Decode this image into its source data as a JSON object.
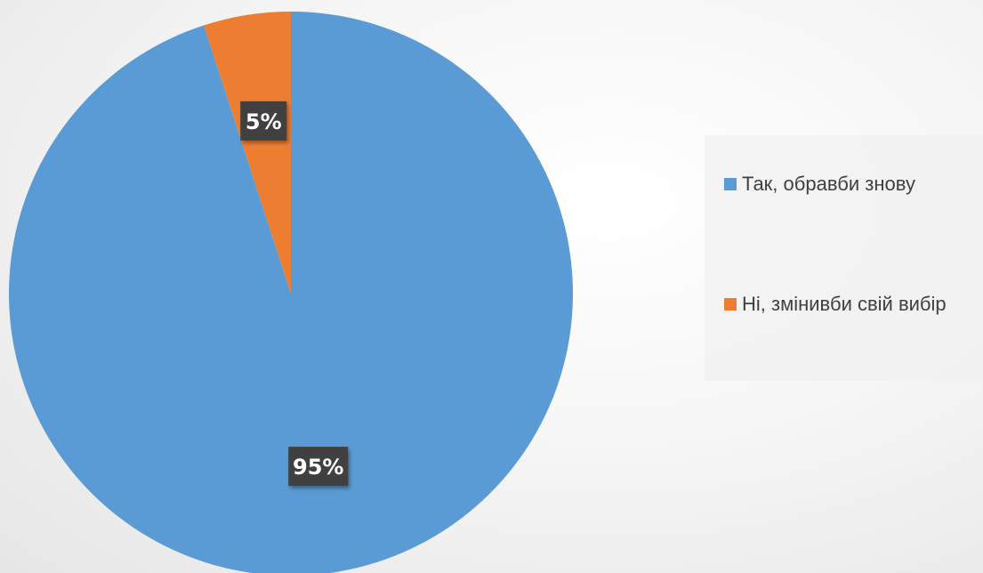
{
  "chart_data": {
    "type": "pie",
    "categories": [
      "Так, обравби знову",
      "Ні, змінивби свій вибір"
    ],
    "values": [
      95,
      5
    ],
    "data_labels": [
      "95%",
      "5%"
    ],
    "colors": [
      "#5B9BD5",
      "#ED7D31"
    ],
    "start_angle_deg": 0,
    "direction": "clockwise",
    "legend_position": "right",
    "title": "",
    "subtitle": ""
  },
  "colors": {
    "label_box": "#404040",
    "legend_text": "#404040"
  }
}
